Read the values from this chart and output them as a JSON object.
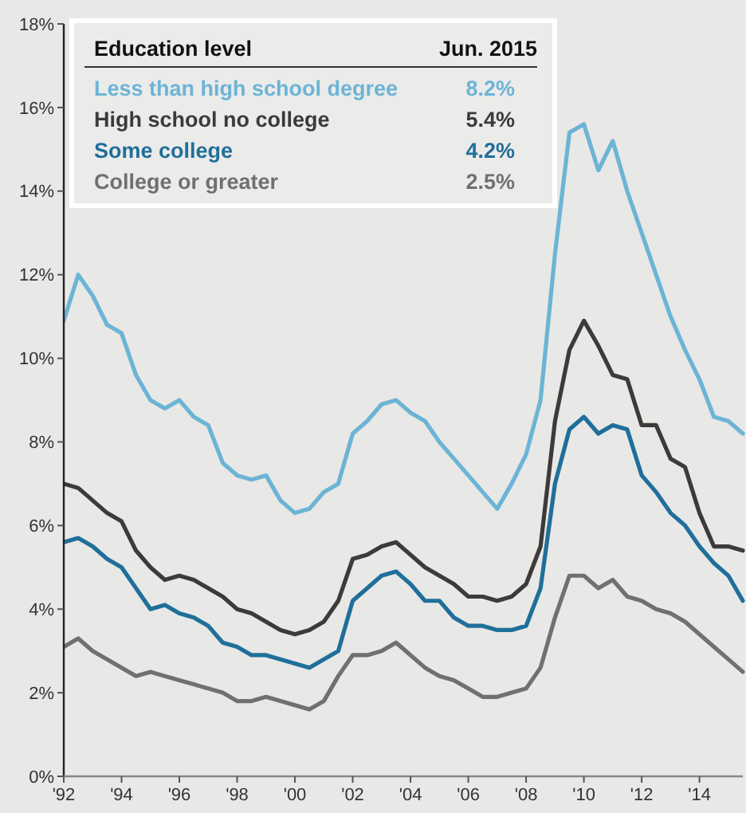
{
  "chart_data": {
    "type": "line",
    "legend_title": "Education level",
    "legend": "top left",
    "grid": false,
    "marker": "none",
    "line_style": "solid",
    "x": [
      1992,
      1992.5,
      1993,
      1993.5,
      1994,
      1994.5,
      1995,
      1995.5,
      1996,
      1996.5,
      1997,
      1997.5,
      1998,
      1998.5,
      1999,
      1999.5,
      2000,
      2000.5,
      2001,
      2001.5,
      2002,
      2002.5,
      2003,
      2003.5,
      2004,
      2004.5,
      2005,
      2005.5,
      2006,
      2006.5,
      2007,
      2007.5,
      2008,
      2008.5,
      2009,
      2009.5,
      2010,
      2010.5,
      2011,
      2011.5,
      2012,
      2012.5,
      2013,
      2013.5,
      2014,
      2014.5,
      2015,
      2015.5
    ],
    "series": [
      {
        "name": "Less than high school degree",
        "color": "#6cb4d6",
        "values": [
          10.9,
          12.0,
          11.5,
          10.8,
          10.6,
          9.6,
          9.0,
          8.8,
          9.0,
          8.6,
          8.4,
          7.5,
          7.2,
          7.1,
          7.2,
          6.6,
          6.3,
          6.4,
          6.8,
          7.0,
          8.2,
          8.5,
          8.9,
          9.0,
          8.7,
          8.5,
          8.0,
          7.6,
          7.2,
          6.8,
          6.4,
          7.0,
          7.7,
          9.0,
          12.5,
          15.4,
          15.6,
          14.5,
          15.2,
          14.0,
          13.0,
          12.0,
          11.0,
          10.2,
          9.5,
          8.6,
          8.5,
          8.2
        ]
      },
      {
        "name": "High school no college",
        "color": "#3d3a3a",
        "values": [
          7.0,
          6.9,
          6.6,
          6.3,
          6.1,
          5.4,
          5.0,
          4.7,
          4.8,
          4.7,
          4.5,
          4.3,
          4.0,
          3.9,
          3.7,
          3.5,
          3.4,
          3.5,
          3.7,
          4.2,
          5.2,
          5.3,
          5.5,
          5.6,
          5.3,
          5.0,
          4.8,
          4.6,
          4.3,
          4.3,
          4.2,
          4.3,
          4.6,
          5.5,
          8.5,
          10.2,
          10.9,
          10.3,
          9.6,
          9.5,
          8.4,
          8.4,
          7.6,
          7.4,
          6.3,
          5.5,
          5.5,
          5.4
        ]
      },
      {
        "name": "Some college",
        "color": "#1f6f9a",
        "values": [
          5.6,
          5.7,
          5.5,
          5.2,
          5.0,
          4.5,
          4.0,
          4.1,
          3.9,
          3.8,
          3.6,
          3.2,
          3.1,
          2.9,
          2.9,
          2.8,
          2.7,
          2.6,
          2.8,
          3.0,
          4.2,
          4.5,
          4.8,
          4.9,
          4.6,
          4.2,
          4.2,
          3.8,
          3.6,
          3.6,
          3.5,
          3.5,
          3.6,
          4.5,
          7.0,
          8.3,
          8.6,
          8.2,
          8.4,
          8.3,
          7.2,
          6.8,
          6.3,
          6.0,
          5.5,
          5.1,
          4.8,
          4.2
        ]
      },
      {
        "name": "College or greater",
        "color": "#707070",
        "values": [
          3.1,
          3.3,
          3.0,
          2.8,
          2.6,
          2.4,
          2.5,
          2.4,
          2.3,
          2.2,
          2.1,
          2.0,
          1.8,
          1.8,
          1.9,
          1.8,
          1.7,
          1.6,
          1.8,
          2.4,
          2.9,
          2.9,
          3.0,
          3.2,
          2.9,
          2.6,
          2.4,
          2.3,
          2.1,
          1.9,
          1.9,
          2.0,
          2.1,
          2.6,
          3.8,
          4.8,
          4.8,
          4.5,
          4.7,
          4.3,
          4.2,
          4.0,
          3.9,
          3.7,
          3.4,
          3.1,
          2.8,
          2.5
        ]
      }
    ],
    "annotations": [
      "Jun. 2015",
      "8.2%",
      "5.4%",
      "4.2%",
      "2.5%"
    ],
    "xlim": [
      1992,
      2015.5
    ],
    "xticks": [
      {
        "value": 1992,
        "label": "'92"
      },
      {
        "value": 1994,
        "label": "'94"
      },
      {
        "value": 1996,
        "label": "'96"
      },
      {
        "value": 1998,
        "label": "'98"
      },
      {
        "value": 2000,
        "label": "'00"
      },
      {
        "value": 2002,
        "label": "'02"
      },
      {
        "value": 2004,
        "label": "'04"
      },
      {
        "value": 2006,
        "label": "'06"
      },
      {
        "value": 2008,
        "label": "'08"
      },
      {
        "value": 2010,
        "label": "'10"
      },
      {
        "value": 2012,
        "label": "'12"
      },
      {
        "value": 2014,
        "label": "'14"
      }
    ],
    "ylim": [
      0,
      18
    ],
    "yticks": [
      {
        "value": 0,
        "label": "0%"
      },
      {
        "value": 2,
        "label": "2%"
      },
      {
        "value": 4,
        "label": "4%"
      },
      {
        "value": 6,
        "label": "6%"
      },
      {
        "value": 8,
        "label": "8%"
      },
      {
        "value": 10,
        "label": "10%"
      },
      {
        "value": 12,
        "label": "12%"
      },
      {
        "value": 14,
        "label": "14%"
      },
      {
        "value": 16,
        "label": "16%"
      },
      {
        "value": 18,
        "label": "18%"
      }
    ]
  }
}
